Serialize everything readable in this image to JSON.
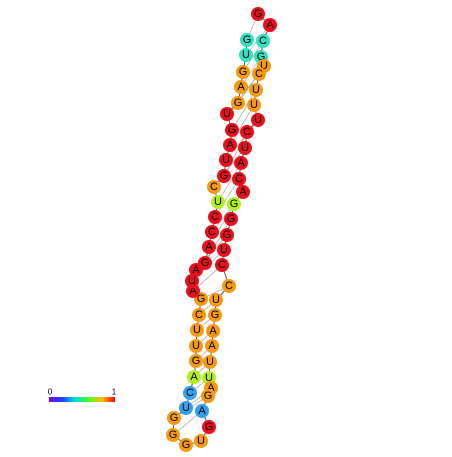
{
  "nodes": [
    {
      "label": "G",
      "color": "#e8101a"
    },
    {
      "label": "A",
      "color": "#e8101a"
    },
    {
      "label": "C",
      "color": "#30e0c0"
    },
    {
      "label": "G",
      "color": "#30e0c0"
    },
    {
      "label": "U",
      "color": "#f59a10"
    },
    {
      "label": "C",
      "color": "#f59a10"
    },
    {
      "label": "U",
      "color": "#f59a10"
    },
    {
      "label": "U",
      "color": "#f59a10"
    },
    {
      "label": "U",
      "color": "#e8101a"
    },
    {
      "label": "C",
      "color": "#e8101a"
    },
    {
      "label": "U",
      "color": "#e8101a"
    },
    {
      "label": "A",
      "color": "#e8101a"
    },
    {
      "label": "C",
      "color": "#e8101a"
    },
    {
      "label": "A",
      "color": "#e8101a"
    },
    {
      "label": "G",
      "color": "#b0f020"
    },
    {
      "label": "G",
      "color": "#e8101a"
    },
    {
      "label": "G",
      "color": "#e8101a"
    },
    {
      "label": "U",
      "color": "#e8101a"
    },
    {
      "label": "C",
      "color": "#e8101a"
    },
    {
      "label": "C",
      "color": "#f59a10"
    },
    {
      "label": "U",
      "color": "#f59a10"
    },
    {
      "label": "G",
      "color": "#f59a10"
    },
    {
      "label": "A",
      "color": "#f59a10"
    },
    {
      "label": "A",
      "color": "#f59a10"
    },
    {
      "label": "U",
      "color": "#f59a10"
    },
    {
      "label": "U",
      "color": "#b0f020"
    },
    {
      "label": "A",
      "color": "#f59a10"
    },
    {
      "label": "G",
      "color": "#f59a10"
    },
    {
      "label": "A",
      "color": "#30a0f0"
    },
    {
      "label": "G",
      "color": "#e8101a"
    },
    {
      "label": "U",
      "color": "#f59a10"
    },
    {
      "label": "G",
      "color": "#f59a10"
    },
    {
      "label": "G",
      "color": "#f59a10"
    },
    {
      "label": "G",
      "color": "#f59a10"
    },
    {
      "label": "U",
      "color": "#30a0f0"
    },
    {
      "label": "C",
      "color": "#30a0f0"
    },
    {
      "label": "A",
      "color": "#b0f020"
    },
    {
      "label": "G",
      "color": "#f59a10"
    },
    {
      "label": "U",
      "color": "#f59a10"
    },
    {
      "label": "U",
      "color": "#f59a10"
    },
    {
      "label": "C",
      "color": "#f59a10"
    },
    {
      "label": "G",
      "color": "#f59a10"
    },
    {
      "label": "A",
      "color": "#e8101a"
    },
    {
      "label": "U",
      "color": "#e8101a"
    },
    {
      "label": "A",
      "color": "#e8101a"
    },
    {
      "label": "G",
      "color": "#e8101a"
    },
    {
      "label": "A",
      "color": "#e8101a"
    },
    {
      "label": "C",
      "color": "#e8101a"
    },
    {
      "label": "C",
      "color": "#e8101a"
    },
    {
      "label": "U",
      "color": "#b0f020"
    },
    {
      "label": "C",
      "color": "#f59a10"
    },
    {
      "label": "G",
      "color": "#e8101a"
    },
    {
      "label": "U",
      "color": "#e8101a"
    },
    {
      "label": "A",
      "color": "#e8101a"
    },
    {
      "label": "G",
      "color": "#e8101a"
    },
    {
      "label": "U",
      "color": "#e8101a"
    },
    {
      "label": "G",
      "color": "#f59a10"
    },
    {
      "label": "A",
      "color": "#f59a10"
    },
    {
      "label": "G",
      "color": "#f59a10"
    },
    {
      "label": "U",
      "color": "#30e0c0"
    },
    {
      "label": "G",
      "color": "#30e0c0"
    }
  ],
  "legend": {
    "min_label": "0",
    "max_label": "1"
  }
}
